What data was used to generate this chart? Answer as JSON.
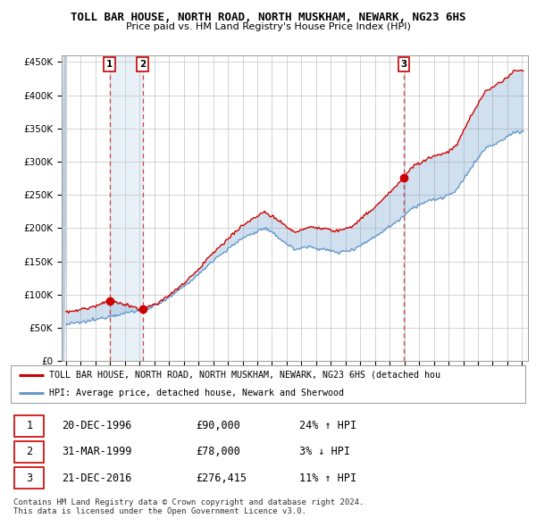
{
  "title": "TOLL BAR HOUSE, NORTH ROAD, NORTH MUSKHAM, NEWARK, NG23 6HS",
  "subtitle": "Price paid vs. HM Land Registry's House Price Index (HPI)",
  "ylim": [
    0,
    460000
  ],
  "yticks": [
    0,
    50000,
    100000,
    150000,
    200000,
    250000,
    300000,
    350000,
    400000,
    450000
  ],
  "ytick_labels": [
    "£0",
    "£50K",
    "£100K",
    "£150K",
    "£200K",
    "£250K",
    "£300K",
    "£350K",
    "£400K",
    "£450K"
  ],
  "sale_prices": [
    90000,
    78000,
    276415
  ],
  "sale_labels": [
    "1",
    "2",
    "3"
  ],
  "legend_line1": "TOLL BAR HOUSE, NORTH ROAD, NORTH MUSKHAM, NEWARK, NG23 6HS (detached hou",
  "legend_line2": "HPI: Average price, detached house, Newark and Sherwood",
  "table_data": [
    [
      "1",
      "20-DEC-1996",
      "£90,000",
      "24% ↑ HPI"
    ],
    [
      "2",
      "31-MAR-1999",
      "£78,000",
      "3% ↓ HPI"
    ],
    [
      "3",
      "21-DEC-2016",
      "£276,415",
      "11% ↑ HPI"
    ]
  ],
  "footer": "Contains HM Land Registry data © Crown copyright and database right 2024.\nThis data is licensed under the Open Government Licence v3.0.",
  "red_color": "#cc0000",
  "blue_color": "#6699cc",
  "fill_color": "#d0e4f0",
  "grid_color": "#cccccc",
  "bg_color": "#ffffff",
  "hpi_anchors_t": [
    1994.0,
    1995.0,
    1996.0,
    1997.0,
    1998.0,
    1999.0,
    2000.0,
    2001.0,
    2002.0,
    2003.0,
    2004.0,
    2005.0,
    2006.0,
    2007.5,
    2008.5,
    2009.5,
    2010.5,
    2011.5,
    2012.5,
    2013.5,
    2014.5,
    2015.5,
    2016.5,
    2017.5,
    2018.5,
    2019.5,
    2020.5,
    2021.5,
    2022.5,
    2023.5,
    2024.5
  ],
  "hpi_anchors_v": [
    55000,
    58000,
    62000,
    68000,
    72000,
    76000,
    83000,
    95000,
    112000,
    130000,
    152000,
    168000,
    185000,
    200000,
    185000,
    168000,
    172000,
    168000,
    163000,
    168000,
    180000,
    195000,
    210000,
    230000,
    240000,
    245000,
    255000,
    290000,
    320000,
    330000,
    345000
  ]
}
